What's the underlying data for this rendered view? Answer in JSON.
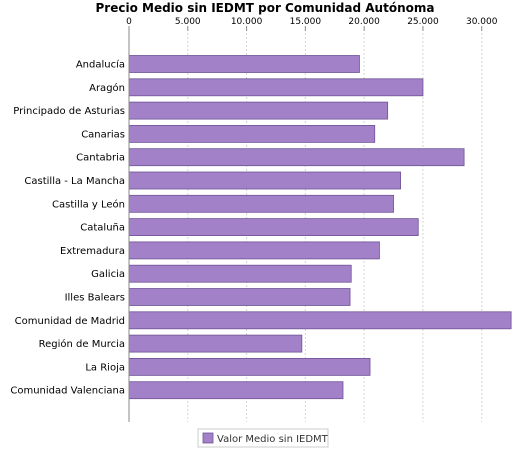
{
  "chart_data": {
    "type": "bar",
    "orientation": "horizontal",
    "title": "Precio Medio sin IEDMT por Comunidad Autónoma",
    "xlabel": "",
    "ylabel": "",
    "xlim": [
      0,
      33000
    ],
    "ticks": [
      0,
      5000,
      10000,
      15000,
      20000,
      25000,
      30000
    ],
    "tick_labels": [
      "0",
      "5.000",
      "10.000",
      "15.000",
      "20.000",
      "25.000",
      "30.000"
    ],
    "axis_position": "top",
    "grid": true,
    "legend_position": "bottom",
    "categories": [
      "Andalucía",
      "Aragón",
      "Principado de Asturias",
      "Canarias",
      "Cantabria",
      "Castilla - La Mancha",
      "Castilla y León",
      "Cataluña",
      "Extremadura",
      "Galicia",
      "Illes Balears",
      "Comunidad de Madrid",
      "Región de Murcia",
      "La Rioja",
      "Comunidad Valenciana"
    ],
    "series": [
      {
        "name": "Valor Medio sin IEDMT",
        "color": "#a281c9",
        "values": [
          19600,
          25000,
          22000,
          20900,
          28500,
          23100,
          22500,
          24600,
          21300,
          18900,
          18800,
          32500,
          14700,
          20500,
          18200
        ]
      }
    ]
  }
}
